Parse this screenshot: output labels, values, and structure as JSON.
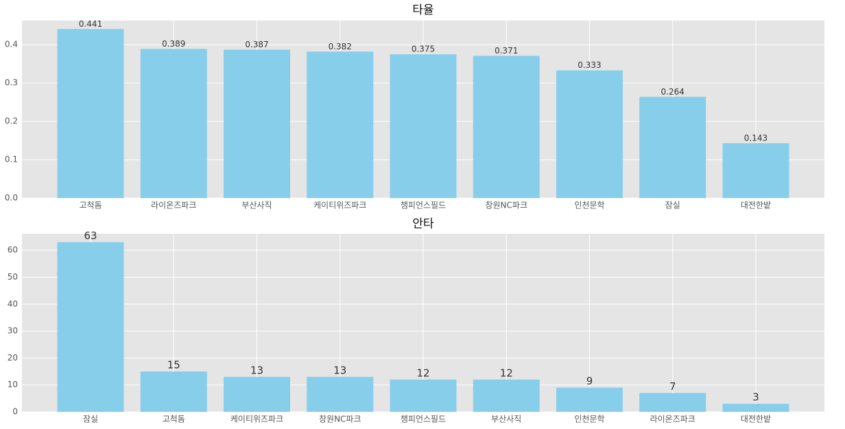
{
  "chart_data": [
    {
      "type": "bar",
      "title": "타율",
      "categories": [
        "고척돔",
        "라이온즈파크",
        "부산사직",
        "케이티위즈파크",
        "챔피언스필드",
        "창원NC파크",
        "인천문학",
        "잠실",
        "대전한밭"
      ],
      "values": [
        0.441,
        0.389,
        0.387,
        0.382,
        0.375,
        0.371,
        0.333,
        0.264,
        0.143
      ],
      "color": "#87ceeb",
      "ylim": [
        0,
        0.463
      ],
      "yticks": [
        {
          "value": 0,
          "label": "0.0"
        },
        0.1,
        0.2,
        0.3,
        0.4
      ],
      "grid": true
    },
    {
      "type": "bar",
      "title": "안타",
      "categories": [
        "잠실",
        "고척돔",
        "케이티위즈파크",
        "창원NC파크",
        "챔피언스필드",
        "부산사직",
        "인천문학",
        "라이온즈파크",
        "대전한밭"
      ],
      "values": [
        63,
        15,
        13,
        13,
        12,
        12,
        9,
        7,
        3
      ],
      "color": "#87ceeb",
      "ylim": [
        0,
        66.15
      ],
      "yticks": [
        0,
        10,
        20,
        30,
        40,
        50,
        60
      ],
      "grid": true
    }
  ]
}
